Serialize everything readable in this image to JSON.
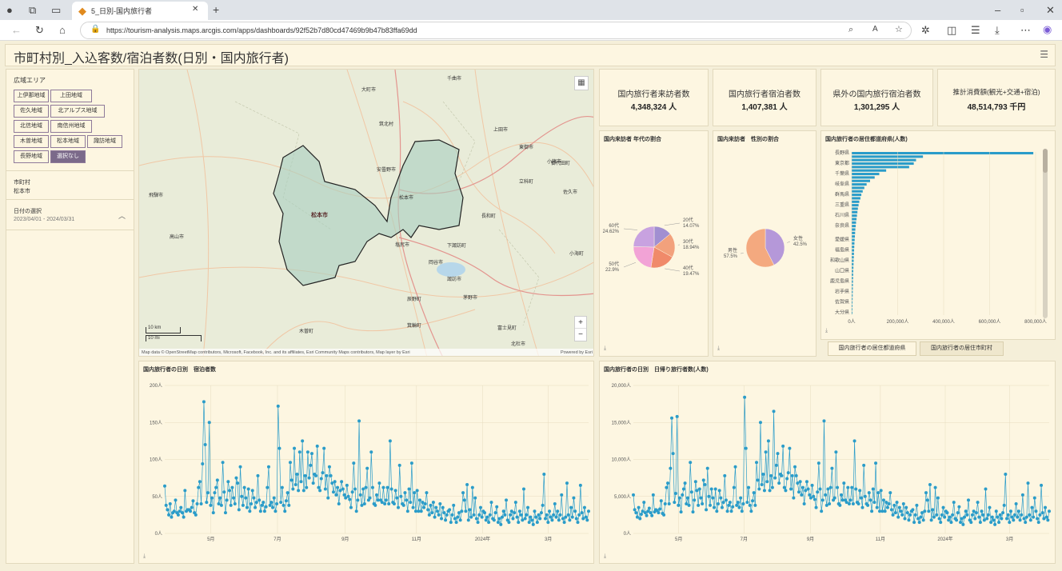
{
  "browser": {
    "tab_title": "5_日別-国内旅行者",
    "url": "https://tourism-analysis.maps.arcgis.com/apps/dashboards/92f52b7d80cd47469b9b47b83ffa69dd"
  },
  "dashboard": {
    "title": "市町村別_入込客数/宿泊者数(日別・国内旅行者)"
  },
  "sidebar": {
    "area_label": "広域エリア",
    "area_buttons": [
      "上伊那地域",
      "上田地域",
      "佐久地域",
      "北アルプス地域",
      "北信地域",
      "南信州地域",
      "木曽地域",
      "松本地域",
      "諏訪地域",
      "長野地域",
      "選択なし"
    ],
    "selected_area": "選択なし",
    "city_label": "市町村",
    "city_value": "松本市",
    "date_label": "日付の選択",
    "date_value": "2023/04/01 - 2024/03/31"
  },
  "map": {
    "highlight_label": "松本市",
    "scale_km": "10 km",
    "scale_mi": "10 mi",
    "attribution": "Map data © OpenStreetMap contributors, Microsoft, Facebook, Inc. and its affiliates, Esri Community Maps contributors, Map layer by Esri",
    "powered": "Powered by Esri",
    "places": [
      {
        "name": "大町市"
      },
      {
        "name": "千曲市"
      },
      {
        "name": "上田市"
      },
      {
        "name": "東御市"
      },
      {
        "name": "小諸市"
      },
      {
        "name": "安曇野市"
      },
      {
        "name": "松本市"
      },
      {
        "name": "佐久市"
      },
      {
        "name": "飛騨市"
      },
      {
        "name": "高山市"
      },
      {
        "name": "長和町"
      },
      {
        "name": "塩尻市"
      },
      {
        "name": "岡谷市"
      },
      {
        "name": "諏訪市"
      },
      {
        "name": "茅野市"
      },
      {
        "name": "下諏訪町"
      },
      {
        "name": "辰野町"
      },
      {
        "name": "富士見町"
      },
      {
        "name": "箕輪町"
      },
      {
        "name": "木曽町"
      },
      {
        "name": "筑北村"
      },
      {
        "name": "立科町"
      },
      {
        "name": "御代田町"
      },
      {
        "name": "小海町"
      },
      {
        "name": "北杜市"
      }
    ]
  },
  "kpis": [
    {
      "title": "国内旅行者来訪者数",
      "value": "4,348,324 人"
    },
    {
      "title": "国内旅行者宿泊者数",
      "value": "1,407,381 人"
    },
    {
      "title": "県外の国内旅行宿泊者数",
      "value": "1,301,295 人"
    },
    {
      "title": "推計消費額(観光+交通+宿泊)",
      "value": "48,514,793 千円"
    }
  ],
  "age_pie": {
    "title": "国内来訪者 年代の割合",
    "chart_data": {
      "type": "pie",
      "slices": [
        {
          "label": "20代",
          "value": 14.07,
          "text": "14.07%",
          "color": "#a18fd1"
        },
        {
          "label": "30代",
          "value": 18.94,
          "text": "18.94%",
          "color": "#f2a17c"
        },
        {
          "label": "40代",
          "value": 19.47,
          "text": "19.47%",
          "color": "#f08a6a"
        },
        {
          "label": "50代",
          "value": 22.9,
          "text": "22.9%",
          "color": "#f2a3d6"
        },
        {
          "label": "60代",
          "value": 24.62,
          "text": "24.62%",
          "color": "#c8a2e0"
        }
      ]
    }
  },
  "gender_pie": {
    "title": "国内来訪者　性別の割合",
    "chart_data": {
      "type": "pie",
      "slices": [
        {
          "label": "女性",
          "value": 42.5,
          "text": "42.5%",
          "color": "#b598d9"
        },
        {
          "label": "男性",
          "value": 57.5,
          "text": "57.5%",
          "color": "#f4a97f"
        }
      ]
    }
  },
  "pref_bar": {
    "title": "国内旅行者の居住都道府県(人数)",
    "tab1": "国内旅行者の居住都道府県",
    "tab2": "国内旅行者の居住市町村",
    "chart_data": {
      "type": "bar",
      "orientation": "horizontal",
      "shown_labels": [
        "長野県",
        "東京都",
        "千葉県",
        "岐阜県",
        "群馬県",
        "三重県",
        "石川県",
        "奈良県",
        "愛媛県",
        "福島県",
        "和歌山県",
        "山口県",
        "鹿児島県",
        "岩手県",
        "佐賀県",
        "大分県"
      ],
      "values": [
        790000,
        310000,
        280000,
        270000,
        250000,
        150000,
        120000,
        100000,
        80000,
        65000,
        55000,
        48000,
        42000,
        38000,
        33000,
        30000,
        27000,
        25000,
        23000,
        21000,
        19000,
        17500,
        16000,
        15000,
        14000,
        13000,
        12000,
        11200,
        10500,
        9800,
        9200,
        8600,
        8000,
        7500,
        7000,
        6500,
        6100,
        5700,
        5300,
        5000,
        4700,
        4400,
        4100,
        3800,
        3500,
        3200,
        2900
      ],
      "xticks": [
        "0人",
        "200,000人",
        "400,000人",
        "600,000人",
        "800,000人"
      ],
      "xlim": [
        0,
        800000
      ]
    }
  },
  "stay_chart": {
    "title": "国内旅行者の日別　宿泊者数",
    "chart_data": {
      "type": "line",
      "ylim": [
        0,
        200
      ],
      "yticks": [
        "0人",
        "50人",
        "100人",
        "150人",
        "200人"
      ],
      "xticks": [
        "5月",
        "7月",
        "9月",
        "11月",
        "2024年",
        "3月"
      ],
      "x_start": "2023-04-01",
      "x_end": "2024-03-31",
      "values": [
        64,
        38,
        32,
        25,
        40,
        22,
        28,
        30,
        45,
        28,
        25,
        30,
        35,
        28,
        22,
        58,
        30,
        32,
        32,
        30,
        35,
        44,
        28,
        25,
        40,
        62,
        70,
        40,
        94,
        178,
        120,
        42,
        55,
        150,
        38,
        48,
        28,
        55,
        62,
        72,
        40,
        48,
        38,
        96,
        56,
        28,
        45,
        70,
        58,
        38,
        62,
        48,
        40,
        75,
        68,
        32,
        90,
        50,
        38,
        62,
        48,
        35,
        60,
        30,
        40,
        58,
        48,
        35,
        42,
        78,
        45,
        30,
        38,
        42,
        30,
        36,
        62,
        90,
        38,
        42,
        35,
        48,
        30,
        40,
        172,
        115,
        42,
        62,
        38,
        30,
        44,
        55,
        38,
        96,
        72,
        60,
        115,
        66,
        80,
        58,
        110,
        70,
        125,
        58,
        78,
        62,
        110,
        75,
        92,
        108,
        68,
        80,
        78,
        118,
        62,
        58,
        74,
        82,
        115,
        60,
        78,
        48,
        90,
        78,
        68,
        56,
        70,
        52,
        62,
        40,
        58,
        70,
        60,
        52,
        48,
        65,
        50,
        46,
        35,
        56,
        95,
        60,
        30,
        45,
        152,
        52,
        38,
        60,
        40,
        62,
        88,
        45,
        48,
        110,
        62,
        40,
        38,
        52,
        45,
        68,
        45,
        42,
        62,
        40,
        45,
        62,
        40,
        125,
        60,
        42,
        40,
        58,
        48,
        35,
        92,
        50,
        40,
        38,
        55,
        45,
        30,
        60,
        42,
        95,
        35,
        55,
        30,
        58,
        30,
        45,
        30,
        42,
        35,
        40,
        55,
        32,
        25,
        38,
        28,
        42,
        22,
        35,
        30,
        25,
        40,
        20,
        35,
        28,
        18,
        25,
        30,
        32,
        15,
        25,
        38,
        20,
        15,
        22,
        28,
        18,
        30,
        55,
        45,
        30,
        66,
        18,
        32,
        22,
        62,
        25,
        48,
        20,
        15,
        25,
        35,
        22,
        30,
        28,
        18,
        22,
        15,
        25,
        42,
        20,
        18,
        28,
        36,
        15,
        20,
        12,
        22,
        30,
        25,
        45,
        18,
        15,
        25,
        30,
        20,
        28,
        42,
        22,
        15,
        30,
        25,
        18,
        60,
        20,
        25,
        35,
        15,
        22,
        18,
        12,
        30,
        22,
        15,
        25,
        20,
        28,
        38,
        80,
        20,
        25,
        15,
        30,
        22,
        18,
        25,
        40,
        22,
        30,
        18,
        25,
        52,
        20,
        15,
        22,
        68,
        25,
        18,
        35,
        22,
        48,
        30,
        20,
        15,
        25,
        65,
        28,
        20,
        35,
        22,
        18,
        30
      ]
    }
  },
  "day_chart": {
    "title": "国内旅行者の日別　日帰り旅行者数(人数)",
    "chart_data": {
      "type": "line",
      "ylim": [
        0,
        20000
      ],
      "yticks": [
        "0人",
        "5,000人",
        "10,000人",
        "15,000人",
        "20,000人"
      ],
      "xticks": [
        "5月",
        "7月",
        "9月",
        "11月",
        "2024年",
        "3月"
      ],
      "x_start": "2023-04-01",
      "x_end": "2024-03-31",
      "values": [
        5200,
        3200,
        2800,
        2200,
        3500,
        2000,
        2600,
        3000,
        4200,
        2800,
        2400,
        3000,
        3400,
        2800,
        2400,
        5200,
        2900,
        3200,
        3100,
        2800,
        3300,
        4400,
        2700,
        2500,
        4000,
        6200,
        6800,
        4000,
        8800,
        15600,
        10800,
        4200,
        5400,
        15800,
        3800,
        4800,
        2900,
        5200,
        6000,
        6800,
        4000,
        4800,
        3800,
        9600,
        5600,
        2900,
        4500,
        7000,
        5800,
        3800,
        6000,
        4800,
        4000,
        7200,
        6600,
        3200,
        8800,
        5000,
        3800,
        6000,
        4800,
        3500,
        6000,
        3000,
        4000,
        5800,
        4800,
        3500,
        4200,
        7800,
        4500,
        3000,
        3800,
        4200,
        3000,
        3600,
        6200,
        9000,
        3800,
        4200,
        3500,
        4800,
        3000,
        4000,
        18400,
        11500,
        4200,
        6200,
        3800,
        3000,
        4400,
        5500,
        3800,
        9600,
        7200,
        6000,
        15000,
        6600,
        8000,
        5800,
        11000,
        7000,
        12500,
        5800,
        7800,
        6200,
        16500,
        7500,
        9200,
        10800,
        6800,
        8000,
        7800,
        11800,
        6200,
        5800,
        7400,
        8200,
        11500,
        6000,
        7800,
        4800,
        9000,
        7800,
        6800,
        5600,
        7000,
        5200,
        6200,
        4000,
        5800,
        7000,
        6000,
        5200,
        4800,
        6500,
        5000,
        4600,
        3500,
        5600,
        9500,
        6000,
        3000,
        4500,
        15200,
        5200,
        3800,
        6000,
        4000,
        6200,
        8800,
        4500,
        4800,
        11000,
        6200,
        4000,
        3800,
        5200,
        4500,
        6800,
        4500,
        4200,
        6200,
        4000,
        4500,
        6200,
        4000,
        12500,
        6000,
        4200,
        4000,
        5800,
        4800,
        3500,
        9200,
        5000,
        4000,
        3800,
        5500,
        4500,
        3000,
        6000,
        4200,
        9500,
        3500,
        5500,
        3000,
        5800,
        3000,
        4500,
        3000,
        4200,
        3500,
        4000,
        5500,
        3200,
        2500,
        3800,
        2800,
        4200,
        2200,
        3500,
        3000,
        2500,
        4000,
        2000,
        3500,
        2800,
        1800,
        2500,
        3000,
        3200,
        1500,
        2500,
        3800,
        2000,
        1500,
        2200,
        2800,
        1800,
        3000,
        5500,
        4500,
        3000,
        6600,
        1800,
        3200,
        2200,
        6200,
        2500,
        4800,
        2000,
        1500,
        2500,
        3500,
        2200,
        3000,
        2800,
        1800,
        2200,
        1500,
        2500,
        4200,
        2000,
        1800,
        2800,
        3600,
        1500,
        2000,
        1200,
        2200,
        3000,
        2500,
        4500,
        1800,
        1500,
        2500,
        3000,
        2000,
        2800,
        4200,
        2200,
        1500,
        3000,
        2500,
        1800,
        6000,
        2000,
        2500,
        3500,
        1500,
        2200,
        1800,
        1200,
        3000,
        2200,
        1500,
        2500,
        2000,
        2800,
        3800,
        8000,
        2000,
        2500,
        1500,
        3000,
        2200,
        1800,
        2500,
        4000,
        2200,
        3000,
        1800,
        2500,
        5200,
        2000,
        1500,
        2200,
        6800,
        2500,
        1800,
        3500,
        2200,
        4800,
        3000,
        2000,
        1500,
        2500,
        6500,
        2800,
        2000,
        3500,
        2200,
        1800,
        3000
      ]
    }
  },
  "download_glyph": "⤓",
  "colors": {
    "accent": "#2a9cc9",
    "bg": "#f5efd9",
    "panel": "#fdf6e1",
    "selected": "#7b6a8a"
  }
}
